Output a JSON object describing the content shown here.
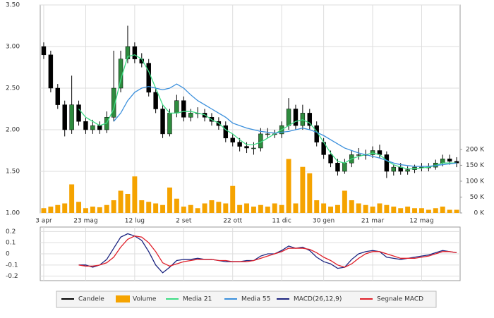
{
  "chart_data": [
    {
      "type": "candlestick",
      "categories": [
        "3 apr",
        null,
        null,
        null,
        null,
        null,
        "23 mag",
        null,
        null,
        null,
        null,
        null,
        null,
        "12 lug",
        null,
        null,
        null,
        null,
        null,
        null,
        "2 set",
        null,
        null,
        null,
        null,
        null,
        null,
        "22 ott",
        null,
        null,
        null,
        null,
        null,
        null,
        "11 dic",
        null,
        null,
        null,
        null,
        null,
        "30 gen",
        null,
        null,
        null,
        null,
        null,
        null,
        "21 mar",
        null,
        null,
        null,
        null,
        null,
        null,
        "12 mag",
        null,
        null,
        null,
        null,
        null
      ],
      "candles": {
        "name": "Candele",
        "color": "#000000",
        "up_color": "#2e8b3e",
        "open": [
          3.0,
          2.9,
          2.5,
          2.3,
          2.0,
          2.3,
          2.1,
          2.0,
          2.05,
          2.0,
          2.15,
          2.5,
          2.85,
          3.0,
          2.85,
          2.8,
          2.45,
          2.25,
          1.95,
          2.2,
          2.35,
          2.15,
          2.2,
          2.2,
          2.15,
          2.1,
          2.05,
          1.9,
          1.85,
          1.8,
          1.78,
          1.78,
          1.95,
          1.95,
          1.95,
          2.05,
          2.25,
          2.05,
          2.2,
          2.05,
          1.85,
          1.7,
          1.6,
          1.5,
          1.6,
          1.7,
          1.7,
          1.7,
          1.75,
          1.7,
          1.5,
          1.55,
          1.5,
          1.52,
          1.55,
          1.55,
          1.55,
          1.6,
          1.65,
          1.62
        ],
        "high": [
          3.05,
          2.95,
          2.55,
          2.35,
          2.65,
          2.35,
          2.15,
          2.12,
          2.1,
          2.22,
          2.95,
          2.95,
          3.25,
          3.05,
          2.92,
          2.85,
          2.5,
          2.3,
          2.25,
          2.42,
          2.4,
          2.25,
          2.27,
          2.25,
          2.2,
          2.15,
          2.1,
          1.95,
          1.9,
          1.85,
          1.85,
          2.02,
          2.02,
          2.0,
          2.1,
          2.38,
          2.3,
          2.3,
          2.25,
          2.1,
          1.9,
          1.75,
          1.65,
          1.65,
          1.75,
          1.78,
          1.76,
          1.8,
          1.82,
          1.74,
          1.58,
          1.6,
          1.56,
          1.58,
          1.6,
          1.6,
          1.64,
          1.7,
          1.7,
          1.67
        ],
        "low": [
          2.85,
          2.45,
          2.25,
          1.92,
          1.95,
          2.05,
          1.95,
          1.95,
          1.95,
          1.96,
          2.1,
          2.45,
          2.8,
          2.8,
          2.75,
          2.4,
          2.2,
          1.9,
          1.92,
          2.15,
          2.1,
          2.1,
          2.14,
          2.1,
          2.05,
          2.0,
          1.85,
          1.8,
          1.74,
          1.72,
          1.7,
          1.74,
          1.9,
          1.9,
          1.9,
          2.0,
          2.0,
          2.0,
          2.0,
          1.8,
          1.65,
          1.55,
          1.45,
          1.47,
          1.55,
          1.64,
          1.64,
          1.66,
          1.66,
          1.42,
          1.45,
          1.46,
          1.46,
          1.48,
          1.5,
          1.5,
          1.52,
          1.56,
          1.58,
          1.55
        ],
        "close": [
          2.9,
          2.5,
          2.3,
          2.0,
          2.3,
          2.1,
          2.0,
          2.05,
          2.0,
          2.15,
          2.5,
          2.85,
          3.0,
          2.85,
          2.8,
          2.45,
          2.25,
          1.95,
          2.2,
          2.35,
          2.15,
          2.2,
          2.2,
          2.15,
          2.1,
          2.05,
          1.9,
          1.85,
          1.8,
          1.78,
          1.78,
          1.95,
          1.95,
          1.95,
          2.05,
          2.25,
          2.05,
          2.2,
          2.05,
          1.85,
          1.7,
          1.6,
          1.5,
          1.6,
          1.7,
          1.7,
          1.7,
          1.75,
          1.7,
          1.5,
          1.55,
          1.5,
          1.52,
          1.55,
          1.55,
          1.55,
          1.6,
          1.65,
          1.62,
          1.6
        ]
      },
      "series": [
        {
          "name": "Volume",
          "type": "bar",
          "axis": "y2",
          "color": "#f5a300",
          "values": [
            15000,
            20000,
            25000,
            30000,
            90000,
            35000,
            15000,
            20000,
            18000,
            25000,
            40000,
            70000,
            60000,
            115000,
            40000,
            35000,
            30000,
            25000,
            80000,
            45000,
            20000,
            25000,
            15000,
            30000,
            40000,
            35000,
            30000,
            85000,
            25000,
            30000,
            20000,
            25000,
            20000,
            30000,
            25000,
            170000,
            30000,
            145000,
            125000,
            40000,
            30000,
            20000,
            25000,
            70000,
            40000,
            30000,
            25000,
            20000,
            30000,
            25000,
            20000,
            15000,
            20000,
            15000,
            15000,
            10000,
            15000,
            20000,
            10000,
            10000
          ]
        },
        {
          "name": "Media 21",
          "type": "line",
          "color": "#3ddc84",
          "values": [
            null,
            null,
            null,
            null,
            null,
            2.25,
            2.15,
            2.1,
            2.05,
            2.08,
            2.25,
            2.6,
            2.88,
            2.9,
            2.85,
            2.7,
            2.5,
            2.3,
            2.2,
            2.2,
            2.22,
            2.22,
            2.2,
            2.18,
            2.12,
            2.08,
            2.0,
            1.95,
            1.88,
            1.82,
            1.82,
            1.85,
            1.9,
            1.95,
            2.0,
            2.05,
            2.1,
            2.12,
            2.08,
            1.98,
            1.85,
            1.72,
            1.62,
            1.6,
            1.65,
            1.68,
            1.7,
            1.72,
            1.7,
            1.63,
            1.58,
            1.55,
            1.53,
            1.53,
            1.54,
            1.55,
            1.57,
            1.6,
            1.6,
            1.6
          ]
        },
        {
          "name": "Media 55",
          "type": "line",
          "color": "#3a8fdc",
          "values": [
            null,
            null,
            null,
            null,
            null,
            null,
            null,
            null,
            null,
            null,
            2.1,
            2.2,
            2.35,
            2.45,
            2.5,
            2.52,
            2.5,
            2.48,
            2.5,
            2.55,
            2.5,
            2.42,
            2.35,
            2.3,
            2.25,
            2.2,
            2.15,
            2.08,
            2.05,
            2.02,
            2.0,
            1.98,
            1.97,
            1.96,
            1.97,
            1.98,
            2.0,
            2.02,
            2.0,
            1.97,
            1.93,
            1.88,
            1.83,
            1.78,
            1.75,
            1.72,
            1.7,
            1.68,
            1.66,
            1.63,
            1.6,
            1.58,
            1.57,
            1.56,
            1.56,
            1.56,
            1.57,
            1.58,
            1.59,
            1.6
          ]
        }
      ],
      "ylim": [
        1.0,
        3.5
      ],
      "yticks": [
        {
          "value": 3.5,
          "label": "3.50"
        },
        {
          "value": 3.0,
          "label": "3.00"
        },
        {
          "value": 2.5,
          "label": "2.50"
        },
        {
          "value": 2.0,
          "label": "2.00"
        },
        {
          "value": 1.5,
          "label": "1.50"
        },
        {
          "value": 1.0,
          "label": "1.00"
        }
      ],
      "y2lim": [
        0,
        655000
      ],
      "y2ticks": [
        {
          "value": 200000,
          "label": "200 K"
        },
        {
          "value": 150000,
          "label": "150 K"
        },
        {
          "value": 100000,
          "label": "100 K"
        },
        {
          "value": 50000,
          "label": "50 K"
        },
        {
          "value": 0,
          "label": "0 K"
        }
      ],
      "grid": true
    },
    {
      "type": "line",
      "series": [
        {
          "name": "MACD(26,12,9)",
          "color": "#1c2580",
          "values": [
            null,
            null,
            null,
            null,
            null,
            -0.1,
            -0.1,
            -0.12,
            -0.1,
            -0.05,
            0.05,
            0.15,
            0.18,
            0.16,
            0.12,
            0.02,
            -0.1,
            -0.17,
            -0.12,
            -0.06,
            -0.05,
            -0.05,
            -0.04,
            -0.05,
            -0.05,
            -0.06,
            -0.07,
            -0.07,
            -0.07,
            -0.06,
            -0.06,
            -0.02,
            0.0,
            0.0,
            0.03,
            0.07,
            0.05,
            0.06,
            0.03,
            -0.03,
            -0.07,
            -0.09,
            -0.13,
            -0.12,
            -0.05,
            0.0,
            0.02,
            0.03,
            0.02,
            -0.03,
            -0.04,
            -0.05,
            -0.04,
            -0.03,
            -0.02,
            -0.01,
            0.01,
            0.03,
            0.02,
            0.01
          ]
        },
        {
          "name": "Segnale MACD",
          "color": "#e0202a",
          "values": [
            null,
            null,
            null,
            null,
            null,
            -0.1,
            -0.11,
            -0.11,
            -0.1,
            -0.08,
            -0.03,
            0.06,
            0.13,
            0.16,
            0.15,
            0.1,
            0.02,
            -0.08,
            -0.11,
            -0.09,
            -0.07,
            -0.06,
            -0.05,
            -0.05,
            -0.05,
            -0.06,
            -0.06,
            -0.07,
            -0.07,
            -0.07,
            -0.06,
            -0.04,
            -0.02,
            0.0,
            0.02,
            0.05,
            0.05,
            0.05,
            0.04,
            0.01,
            -0.03,
            -0.06,
            -0.1,
            -0.12,
            -0.09,
            -0.04,
            0.0,
            0.02,
            0.02,
            0.0,
            -0.02,
            -0.04,
            -0.04,
            -0.04,
            -0.03,
            -0.02,
            0.0,
            0.02,
            0.02,
            0.01
          ]
        }
      ],
      "ylim": [
        -0.24,
        0.24
      ],
      "yticks": [
        0.2,
        0.1,
        0,
        -0.1,
        -0.2
      ],
      "grid": true
    }
  ]
}
